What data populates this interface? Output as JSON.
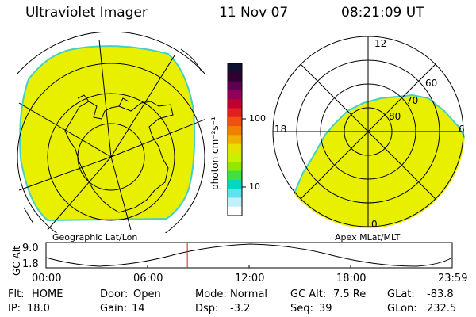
{
  "header": {
    "instrument": "Ultraviolet Imager",
    "date": "11 Nov 07",
    "time": "08:21:09 UT"
  },
  "colors": {
    "emission": "#e8f000",
    "edge": "#44d0c8",
    "line": "#000000",
    "marker": "#d02000"
  },
  "left_map": {
    "caption": "Geographic Lat/Lon"
  },
  "right_map": {
    "caption": "Apex MLat/MLT",
    "mlt_labels": {
      "top": "12",
      "left": "18",
      "right": "6",
      "bottom": "0"
    },
    "mlat_labels": [
      "60",
      "70",
      "80"
    ]
  },
  "colorbar": {
    "unit": "photon cm⁻²s⁻¹",
    "ticks": [
      "100",
      "10"
    ],
    "colors": [
      "#101030",
      "#300030",
      "#600050",
      "#90005a",
      "#c00030",
      "#e02020",
      "#f05010",
      "#f08000",
      "#f0b000",
      "#e8e000",
      "#c8f000",
      "#90e800",
      "#40e040",
      "#00d8c0",
      "#60e0f0",
      "#c0f0f8",
      "#ffffff"
    ]
  },
  "altitude_plot": {
    "axis_label": "GC Alt",
    "y_ticks": [
      "9.0",
      "1.8"
    ],
    "x_ticks": [
      "00:00",
      "06:00",
      "12:00",
      "18:00",
      "23:59"
    ],
    "current_time_hours": 8.35
  },
  "info": {
    "flt_label": "Flt:",
    "flt_value": "HOME",
    "ip_label": "IP:",
    "ip_value": "18.0",
    "door_label": "Door:",
    "door_value": "Open",
    "gain_label": "Gain:",
    "gain_value": "14",
    "mode_label": "Mode:",
    "mode_value": "Normal",
    "dsp_label": "Dsp:",
    "dsp_value": "-3.2",
    "gcalt_label": "GC Alt:",
    "gcalt_value": "7.5 Re",
    "seq_label": "Seq:",
    "seq_value": "39",
    "glat_label": "GLat:",
    "glat_value": "-83.8",
    "glon_label": "GLon:",
    "glon_value": "232.5"
  }
}
